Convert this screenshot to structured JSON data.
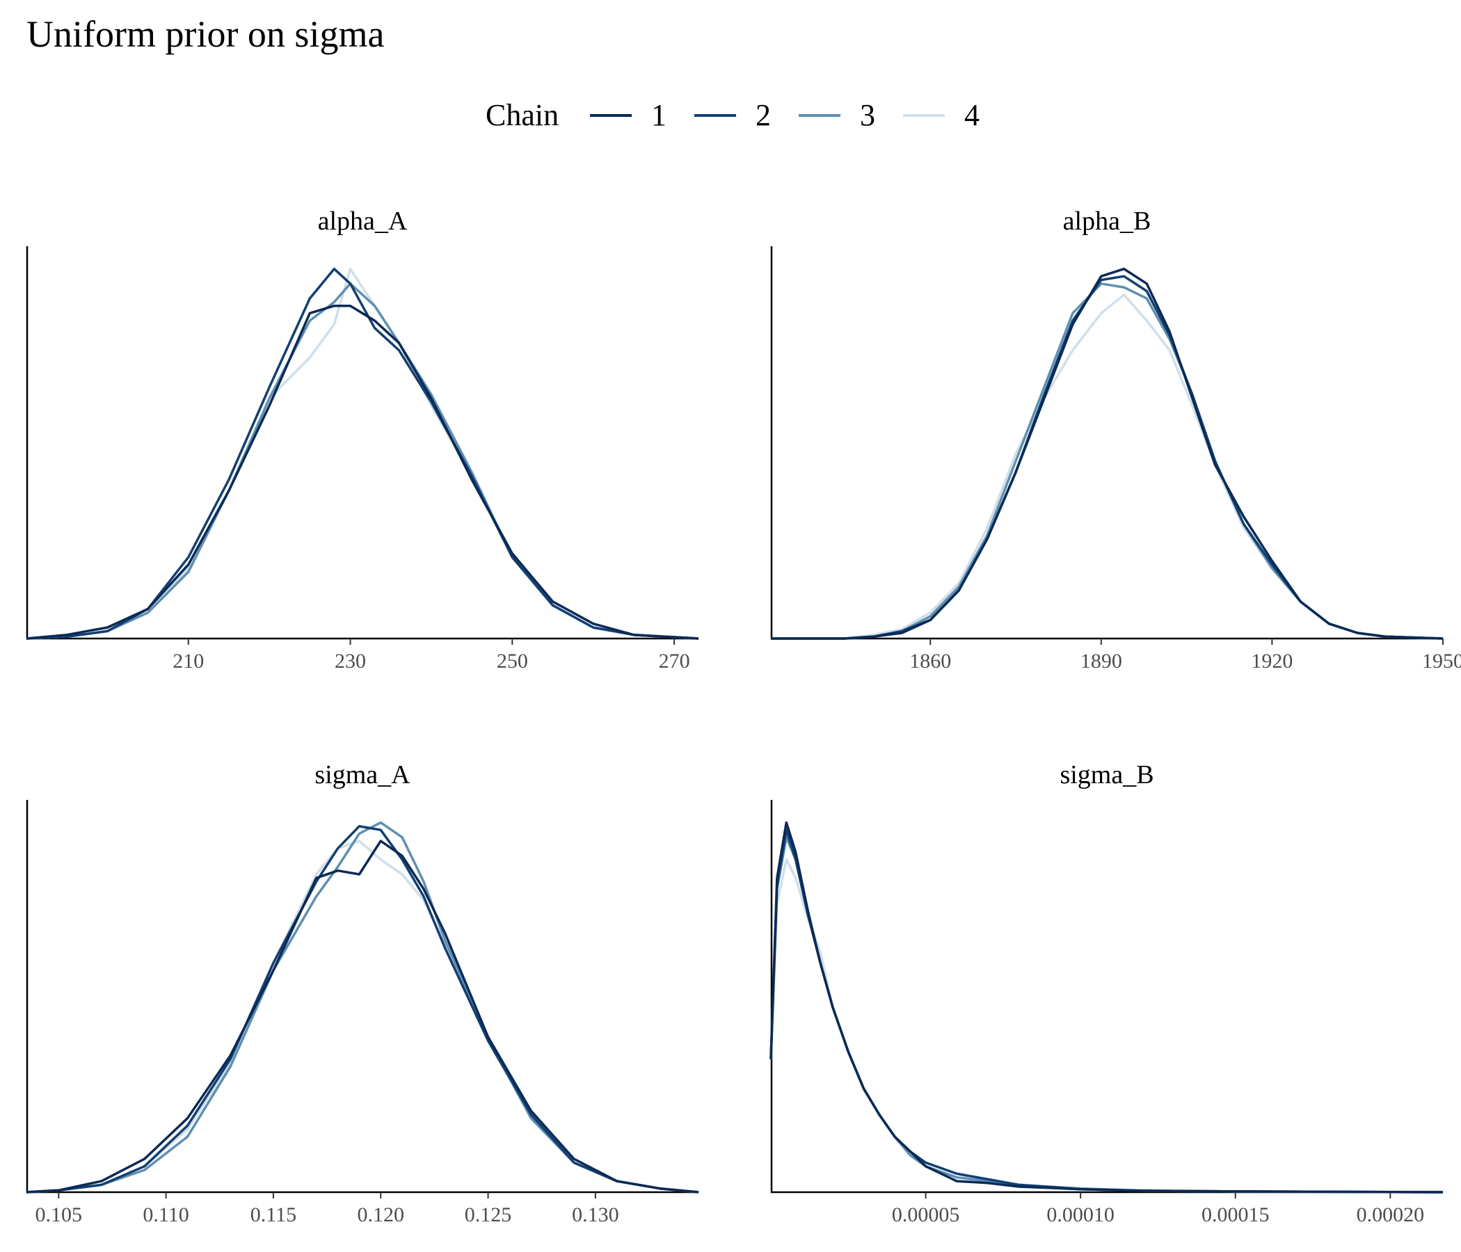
{
  "title": "Uniform prior on sigma",
  "legend": {
    "title": "Chain",
    "items": [
      {
        "label": "1",
        "color": "#0b2a55"
      },
      {
        "label": "2",
        "color": "#123f72"
      },
      {
        "label": "3",
        "color": "#5f8fb0"
      },
      {
        "label": "4",
        "color": "#cfdfea"
      }
    ]
  },
  "chart_data": [
    {
      "type": "line",
      "title": "alpha_A",
      "xlim": [
        190,
        273
      ],
      "ticks": [
        210,
        230,
        250,
        270
      ],
      "tick_labels": [
        "210",
        "230",
        "250",
        "270"
      ],
      "ylim": [
        0,
        1.05
      ],
      "legend_position": "top",
      "grid": false,
      "series": [
        {
          "name": "1",
          "x": [
            190,
            195,
            200,
            205,
            210,
            215,
            220,
            225,
            228,
            230,
            233,
            236,
            240,
            245,
            250,
            255,
            260,
            265,
            273
          ],
          "y": [
            0,
            0.01,
            0.03,
            0.08,
            0.2,
            0.4,
            0.63,
            0.88,
            0.9,
            0.9,
            0.86,
            0.8,
            0.65,
            0.43,
            0.23,
            0.1,
            0.04,
            0.01,
            0
          ]
        },
        {
          "name": "2",
          "x": [
            190,
            195,
            200,
            205,
            210,
            215,
            220,
            225,
            228,
            230,
            233,
            236,
            240,
            245,
            250,
            255,
            260,
            265,
            273
          ],
          "y": [
            0,
            0.005,
            0.02,
            0.08,
            0.22,
            0.43,
            0.68,
            0.92,
            1.0,
            0.96,
            0.84,
            0.78,
            0.64,
            0.44,
            0.22,
            0.09,
            0.03,
            0.01,
            0
          ]
        },
        {
          "name": "3",
          "x": [
            190,
            195,
            200,
            205,
            210,
            215,
            220,
            225,
            228,
            230,
            233,
            236,
            240,
            245,
            250,
            255,
            260,
            265,
            273
          ],
          "y": [
            0,
            0.005,
            0.02,
            0.07,
            0.18,
            0.4,
            0.65,
            0.86,
            0.91,
            0.96,
            0.9,
            0.8,
            0.66,
            0.45,
            0.22,
            0.09,
            0.03,
            0.01,
            0
          ]
        },
        {
          "name": "4",
          "x": [
            190,
            195,
            200,
            205,
            210,
            215,
            220,
            225,
            228,
            230,
            233,
            236,
            240,
            245,
            250,
            255,
            260,
            265,
            273
          ],
          "y": [
            0,
            0.005,
            0.02,
            0.07,
            0.19,
            0.4,
            0.65,
            0.76,
            0.85,
            1.0,
            0.9,
            0.8,
            0.63,
            0.44,
            0.22,
            0.09,
            0.03,
            0.01,
            0
          ]
        }
      ]
    },
    {
      "type": "line",
      "title": "alpha_B",
      "xlim": [
        1832,
        1950
      ],
      "ticks": [
        1860,
        1890,
        1920,
        1950
      ],
      "tick_labels": [
        "1860",
        "1890",
        "1920",
        "1950"
      ],
      "ylim": [
        0,
        1.05
      ],
      "legend_position": "top",
      "grid": false,
      "series": [
        {
          "name": "1",
          "x": [
            1832,
            1845,
            1850,
            1855,
            1860,
            1865,
            1870,
            1875,
            1880,
            1885,
            1890,
            1894,
            1898,
            1902,
            1906,
            1910,
            1915,
            1920,
            1925,
            1930,
            1935,
            1940,
            1950
          ],
          "y": [
            0,
            0,
            0.005,
            0.015,
            0.05,
            0.13,
            0.27,
            0.45,
            0.65,
            0.85,
            0.98,
            1.0,
            0.96,
            0.83,
            0.65,
            0.47,
            0.33,
            0.21,
            0.1,
            0.04,
            0.015,
            0.005,
            0
          ]
        },
        {
          "name": "2",
          "x": [
            1832,
            1845,
            1850,
            1855,
            1860,
            1865,
            1870,
            1875,
            1880,
            1885,
            1890,
            1894,
            1898,
            1902,
            1906,
            1910,
            1915,
            1920,
            1925,
            1930,
            1935,
            1940,
            1950
          ],
          "y": [
            0,
            0,
            0.005,
            0.02,
            0.05,
            0.13,
            0.27,
            0.45,
            0.66,
            0.86,
            0.97,
            0.98,
            0.94,
            0.82,
            0.66,
            0.48,
            0.31,
            0.2,
            0.1,
            0.04,
            0.015,
            0.005,
            0
          ]
        },
        {
          "name": "3",
          "x": [
            1832,
            1845,
            1850,
            1855,
            1860,
            1865,
            1870,
            1875,
            1880,
            1885,
            1890,
            1894,
            1898,
            1902,
            1906,
            1910,
            1915,
            1920,
            1925,
            1930,
            1935,
            1940,
            1950
          ],
          "y": [
            0,
            0,
            0.005,
            0.02,
            0.06,
            0.14,
            0.28,
            0.48,
            0.68,
            0.88,
            0.96,
            0.95,
            0.92,
            0.81,
            0.66,
            0.48,
            0.31,
            0.19,
            0.1,
            0.04,
            0.015,
            0.005,
            0
          ]
        },
        {
          "name": "4",
          "x": [
            1832,
            1845,
            1850,
            1855,
            1860,
            1865,
            1870,
            1875,
            1880,
            1885,
            1890,
            1894,
            1898,
            1902,
            1906,
            1910,
            1915,
            1920,
            1925,
            1930,
            1935,
            1940,
            1950
          ],
          "y": [
            0,
            0,
            0.01,
            0.025,
            0.07,
            0.15,
            0.3,
            0.5,
            0.65,
            0.78,
            0.88,
            0.93,
            0.86,
            0.78,
            0.63,
            0.47,
            0.3,
            0.19,
            0.1,
            0.04,
            0.015,
            0.005,
            0
          ]
        }
      ]
    },
    {
      "type": "line",
      "title": "sigma_A",
      "xlim": [
        0.1035,
        0.1348
      ],
      "ticks": [
        0.105,
        0.11,
        0.115,
        0.12,
        0.125,
        0.13
      ],
      "tick_labels": [
        "0.105",
        "0.110",
        "0.115",
        "0.120",
        "0.125",
        "0.130"
      ],
      "ylim": [
        0,
        1.05
      ],
      "legend_position": "top",
      "grid": false,
      "series": [
        {
          "name": "1",
          "x": [
            0.1035,
            0.105,
            0.107,
            0.109,
            0.111,
            0.113,
            0.115,
            0.117,
            0.118,
            0.119,
            0.12,
            0.121,
            0.122,
            0.123,
            0.125,
            0.127,
            0.129,
            0.131,
            0.133,
            0.1348
          ],
          "y": [
            0,
            0.005,
            0.03,
            0.09,
            0.2,
            0.37,
            0.6,
            0.85,
            0.87,
            0.86,
            0.95,
            0.91,
            0.82,
            0.7,
            0.42,
            0.22,
            0.09,
            0.03,
            0.01,
            0
          ]
        },
        {
          "name": "2",
          "x": [
            0.1035,
            0.105,
            0.107,
            0.109,
            0.111,
            0.113,
            0.115,
            0.117,
            0.118,
            0.119,
            0.12,
            0.121,
            0.122,
            0.123,
            0.125,
            0.127,
            0.129,
            0.131,
            0.133,
            0.1348
          ],
          "y": [
            0,
            0.005,
            0.02,
            0.07,
            0.18,
            0.36,
            0.62,
            0.84,
            0.93,
            0.99,
            0.98,
            0.9,
            0.8,
            0.66,
            0.41,
            0.21,
            0.08,
            0.03,
            0.01,
            0
          ]
        },
        {
          "name": "3",
          "x": [
            0.1035,
            0.105,
            0.107,
            0.109,
            0.111,
            0.113,
            0.115,
            0.117,
            0.118,
            0.119,
            0.12,
            0.121,
            0.122,
            0.123,
            0.125,
            0.127,
            0.129,
            0.131,
            0.133,
            0.1348
          ],
          "y": [
            0,
            0.005,
            0.02,
            0.06,
            0.15,
            0.34,
            0.6,
            0.8,
            0.88,
            0.97,
            1.0,
            0.96,
            0.84,
            0.68,
            0.42,
            0.2,
            0.08,
            0.03,
            0.01,
            0
          ]
        },
        {
          "name": "4",
          "x": [
            0.1035,
            0.105,
            0.107,
            0.109,
            0.111,
            0.113,
            0.115,
            0.117,
            0.118,
            0.119,
            0.12,
            0.121,
            0.122,
            0.123,
            0.125,
            0.127,
            0.129,
            0.131,
            0.133,
            0.1348
          ],
          "y": [
            0,
            0.005,
            0.02,
            0.07,
            0.17,
            0.35,
            0.62,
            0.86,
            0.93,
            0.95,
            0.9,
            0.86,
            0.79,
            0.67,
            0.41,
            0.2,
            0.08,
            0.03,
            0.01,
            0
          ]
        }
      ]
    },
    {
      "type": "line",
      "title": "sigma_B",
      "xlim": [
        0,
        0.000217
      ],
      "ticks": [
        5e-05,
        0.0001,
        0.00015,
        0.0002
      ],
      "tick_labels": [
        "0.00005",
        "0.00010",
        "0.00015",
        "0.00020"
      ],
      "ylim": [
        0,
        1.05
      ],
      "legend_position": "top",
      "grid": false,
      "series": [
        {
          "name": "1",
          "x": [
            0,
            2e-06,
            5e-06,
            8e-06,
            1.2e-05,
            1.6e-05,
            2e-05,
            2.5e-05,
            3e-05,
            3.5e-05,
            4e-05,
            4.5e-05,
            5e-05,
            6e-05,
            7e-05,
            8e-05,
            0.0001,
            0.00012,
            0.00015,
            0.000217
          ],
          "y": [
            0.36,
            0.85,
            1.0,
            0.92,
            0.76,
            0.62,
            0.5,
            0.38,
            0.28,
            0.21,
            0.15,
            0.11,
            0.07,
            0.03,
            0.025,
            0.015,
            0.008,
            0.004,
            0.002,
            0
          ]
        },
        {
          "name": "2",
          "x": [
            0,
            2e-06,
            5e-06,
            8e-06,
            1.2e-05,
            1.6e-05,
            2e-05,
            2.5e-05,
            3e-05,
            3.5e-05,
            4e-05,
            4.5e-05,
            5e-05,
            6e-05,
            7e-05,
            8e-05,
            0.0001,
            0.00012,
            0.00015,
            0.000217
          ],
          "y": [
            0.36,
            0.83,
            0.98,
            0.9,
            0.75,
            0.62,
            0.5,
            0.38,
            0.28,
            0.21,
            0.15,
            0.11,
            0.08,
            0.05,
            0.035,
            0.02,
            0.008,
            0.004,
            0.002,
            0
          ]
        },
        {
          "name": "3",
          "x": [
            0,
            2e-06,
            5e-06,
            8e-06,
            1.2e-05,
            1.6e-05,
            2e-05,
            2.5e-05,
            3e-05,
            3.5e-05,
            4e-05,
            4.5e-05,
            5e-05,
            6e-05,
            7e-05,
            8e-05,
            0.0001,
            0.00012,
            0.00015,
            0.000217
          ],
          "y": [
            0.36,
            0.82,
            0.96,
            0.9,
            0.75,
            0.62,
            0.5,
            0.38,
            0.28,
            0.21,
            0.15,
            0.1,
            0.07,
            0.04,
            0.03,
            0.02,
            0.01,
            0.004,
            0.002,
            0
          ]
        },
        {
          "name": "4",
          "x": [
            0,
            2e-06,
            5e-06,
            8e-06,
            1.2e-05,
            1.6e-05,
            2e-05,
            2.5e-05,
            3e-05,
            3.5e-05,
            4e-05,
            4.5e-05,
            5e-05,
            6e-05,
            7e-05,
            8e-05,
            0.0001,
            0.00012,
            0.00015,
            0.000217
          ],
          "y": [
            0.36,
            0.78,
            0.9,
            0.85,
            0.74,
            0.65,
            0.5,
            0.38,
            0.28,
            0.21,
            0.15,
            0.11,
            0.08,
            0.05,
            0.03,
            0.02,
            0.01,
            0.005,
            0.002,
            0
          ]
        }
      ]
    }
  ]
}
